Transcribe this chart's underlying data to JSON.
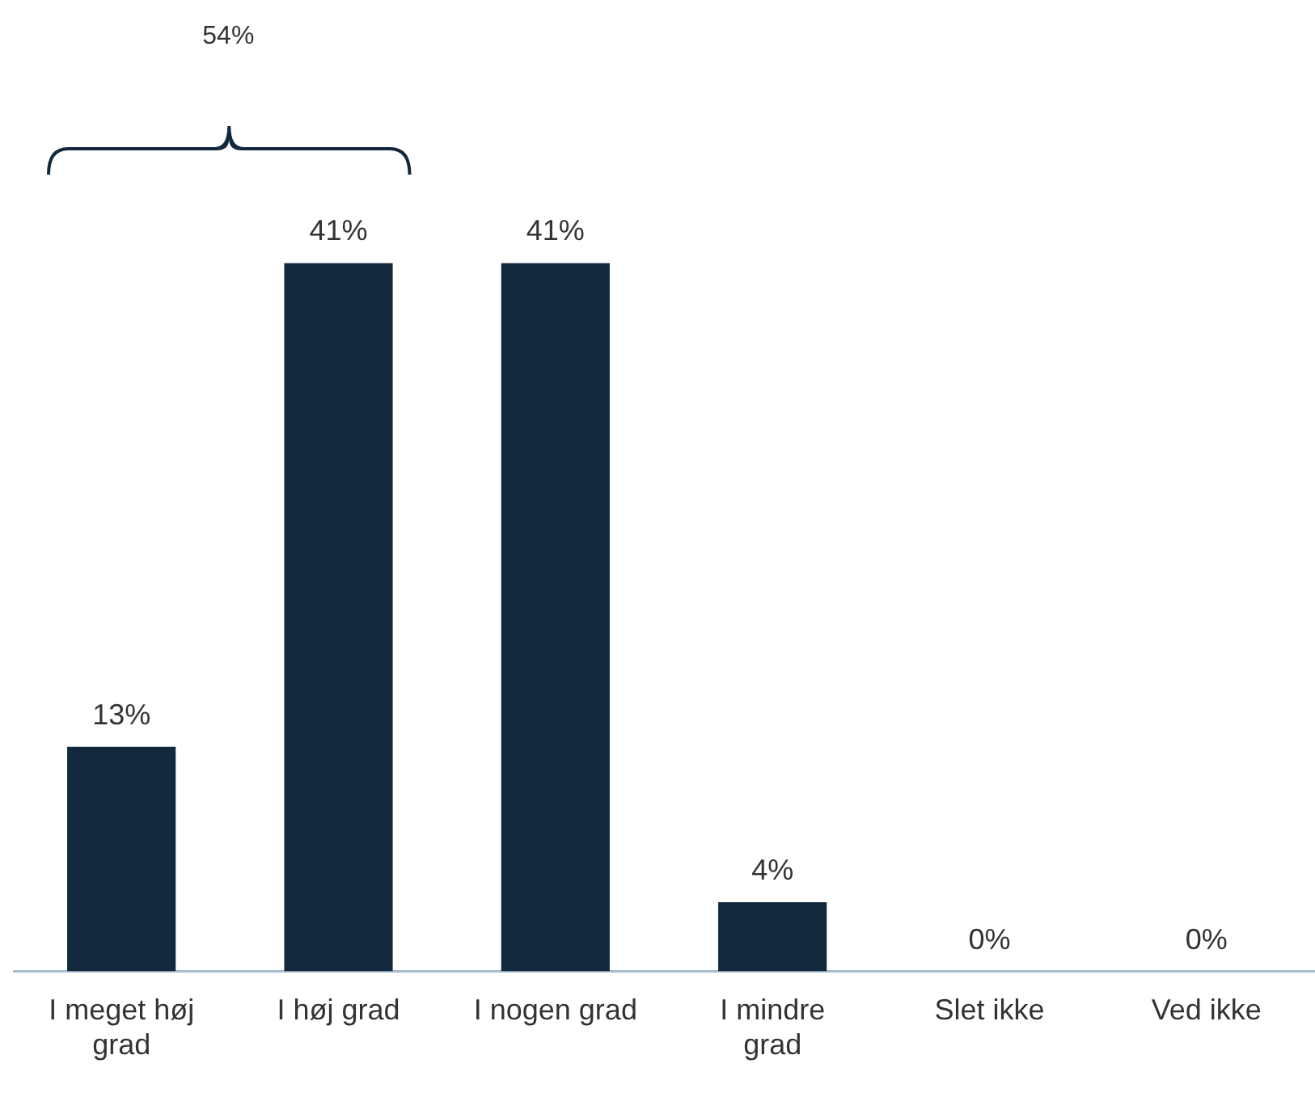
{
  "chart_data": {
    "type": "bar",
    "categories": [
      "I meget høj grad",
      "I høj grad",
      "I nogen grad",
      "I mindre grad",
      "Slet ikke",
      "Ved ikke"
    ],
    "values": [
      13,
      41,
      41,
      4,
      0,
      0
    ],
    "value_labels": [
      "13%",
      "41%",
      "41%",
      "4%",
      "0%",
      "0%"
    ],
    "color": "#12283d",
    "grid": false,
    "legend": false,
    "annotations": [
      "54%"
    ]
  }
}
